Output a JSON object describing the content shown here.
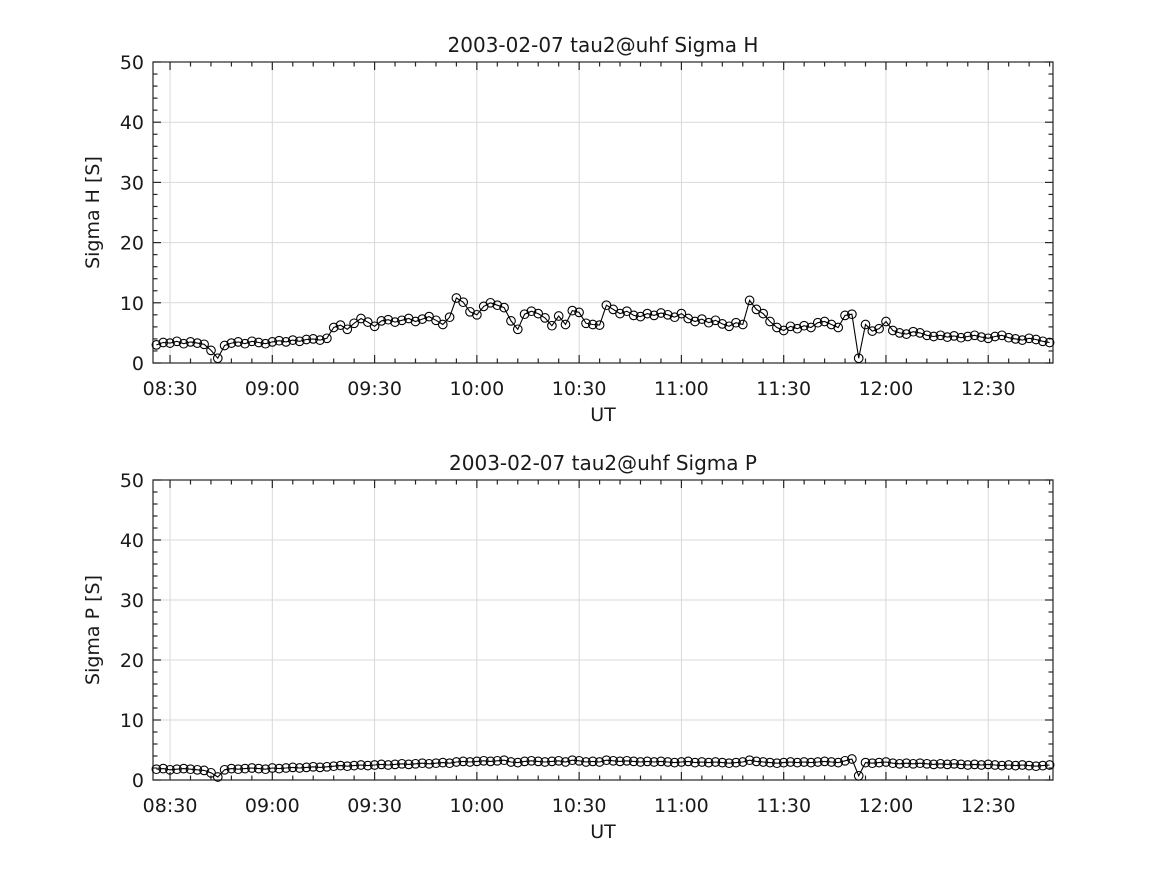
{
  "style": {
    "background": "#ffffff",
    "axis_color": "#262626",
    "text_color": "#1a1a1a",
    "grid_color": "#d9d9d9",
    "line_color": "#000000",
    "marker": "open-circle"
  },
  "chart_data": [
    {
      "type": "line",
      "title": "2003-02-07  tau2@uhf Sigma H",
      "xlabel": "UT",
      "ylabel": "Sigma H [S]",
      "ylim": [
        0,
        50
      ],
      "yticks": [
        0,
        10,
        20,
        30,
        40,
        50
      ],
      "y_minor_step": 2,
      "xlim_min": [
        505,
        769
      ],
      "x_minor_step_min": 6,
      "grid": "major",
      "legend_position": "none",
      "xticks": [
        {
          "min": 510,
          "label": "08:30"
        },
        {
          "min": 540,
          "label": "09:00"
        },
        {
          "min": 570,
          "label": "09:30"
        },
        {
          "min": 600,
          "label": "10:00"
        },
        {
          "min": 630,
          "label": "10:30"
        },
        {
          "min": 660,
          "label": "11:00"
        },
        {
          "min": 690,
          "label": "11:30"
        },
        {
          "min": 720,
          "label": "12:00"
        },
        {
          "min": 750,
          "label": "12:30"
        }
      ],
      "x_start_hhmm": "08:26",
      "x_start_minutes": 506,
      "x_step_minutes": 2,
      "values": [
        3.0,
        3.4,
        3.3,
        3.6,
        3.2,
        3.5,
        3.3,
        3.1,
        2.1,
        0.8,
        2.9,
        3.3,
        3.5,
        3.2,
        3.6,
        3.4,
        3.2,
        3.5,
        3.7,
        3.5,
        3.8,
        3.6,
        3.9,
        4.0,
        3.8,
        4.1,
        5.9,
        6.3,
        5.6,
        6.6,
        7.4,
        6.8,
        6.1,
        7.0,
        7.2,
        6.8,
        7.1,
        7.4,
        6.9,
        7.3,
        7.7,
        7.1,
        6.4,
        7.6,
        10.8,
        10.1,
        8.5,
        8.0,
        9.4,
        10.0,
        9.6,
        9.2,
        7.0,
        5.6,
        8.1,
        8.6,
        8.2,
        7.5,
        6.2,
        7.8,
        6.4,
        8.7,
        8.4,
        6.6,
        6.4,
        6.3,
        9.6,
        8.9,
        8.2,
        8.6,
        7.9,
        7.7,
        8.2,
        7.9,
        8.3,
        8.0,
        7.6,
        8.2,
        7.4,
        6.9,
        7.3,
        6.7,
        7.1,
        6.5,
        6.1,
        6.7,
        6.4,
        10.4,
        8.9,
        8.2,
        6.9,
        5.9,
        5.4,
        6.1,
        5.7,
        6.2,
        5.9,
        6.7,
        6.9,
        6.4,
        5.9,
        7.9,
        8.1,
        0.8,
        6.4,
        5.3,
        5.7,
        6.9,
        5.4,
        5.0,
        4.8,
        5.2,
        5.0,
        4.6,
        4.4,
        4.6,
        4.3,
        4.5,
        4.2,
        4.4,
        4.6,
        4.3,
        4.1,
        4.4,
        4.6,
        4.2,
        4.0,
        3.8,
        4.1,
        3.9,
        3.6,
        3.4
      ]
    },
    {
      "type": "line",
      "title": "2003-02-07  tau2@uhf Sigma P",
      "xlabel": "UT",
      "ylabel": "Sigma P [S]",
      "ylim": [
        0,
        50
      ],
      "yticks": [
        0,
        10,
        20,
        30,
        40,
        50
      ],
      "y_minor_step": 2,
      "xlim_min": [
        505,
        769
      ],
      "x_minor_step_min": 6,
      "grid": "major",
      "legend_position": "none",
      "xticks": [
        {
          "min": 510,
          "label": "08:30"
        },
        {
          "min": 540,
          "label": "09:00"
        },
        {
          "min": 570,
          "label": "09:30"
        },
        {
          "min": 600,
          "label": "10:00"
        },
        {
          "min": 630,
          "label": "10:30"
        },
        {
          "min": 660,
          "label": "11:00"
        },
        {
          "min": 690,
          "label": "11:30"
        },
        {
          "min": 720,
          "label": "12:00"
        },
        {
          "min": 750,
          "label": "12:30"
        }
      ],
      "x_start_hhmm": "08:26",
      "x_start_minutes": 506,
      "x_step_minutes": 2,
      "values": [
        1.8,
        1.9,
        1.7,
        1.8,
        1.9,
        1.8,
        1.7,
        1.6,
        1.2,
        0.5,
        1.7,
        1.9,
        1.8,
        1.9,
        2.0,
        1.9,
        1.8,
        2.0,
        1.9,
        2.0,
        2.1,
        2.0,
        2.1,
        2.2,
        2.1,
        2.2,
        2.3,
        2.4,
        2.3,
        2.4,
        2.5,
        2.4,
        2.5,
        2.6,
        2.5,
        2.6,
        2.7,
        2.6,
        2.7,
        2.8,
        2.7,
        2.8,
        2.9,
        2.8,
        3.0,
        3.1,
        3.0,
        3.1,
        3.2,
        3.1,
        3.2,
        3.3,
        3.0,
        2.9,
        3.1,
        3.2,
        3.1,
        3.0,
        3.1,
        3.2,
        3.0,
        3.3,
        3.2,
        3.0,
        3.1,
        3.0,
        3.3,
        3.2,
        3.1,
        3.2,
        3.1,
        3.0,
        3.1,
        3.0,
        3.1,
        3.0,
        2.9,
        3.0,
        3.1,
        2.9,
        3.0,
        2.9,
        3.0,
        2.9,
        2.8,
        2.9,
        3.0,
        3.3,
        3.1,
        3.0,
        2.9,
        2.8,
        2.9,
        3.0,
        2.9,
        3.0,
        2.9,
        3.0,
        3.1,
        3.0,
        2.9,
        3.2,
        3.5,
        0.7,
        2.9,
        2.8,
        2.9,
        3.0,
        2.8,
        2.7,
        2.8,
        2.7,
        2.8,
        2.7,
        2.6,
        2.7,
        2.6,
        2.7,
        2.6,
        2.5,
        2.6,
        2.5,
        2.6,
        2.5,
        2.4,
        2.5,
        2.4,
        2.5,
        2.4,
        2.3,
        2.4,
        2.5
      ]
    }
  ]
}
